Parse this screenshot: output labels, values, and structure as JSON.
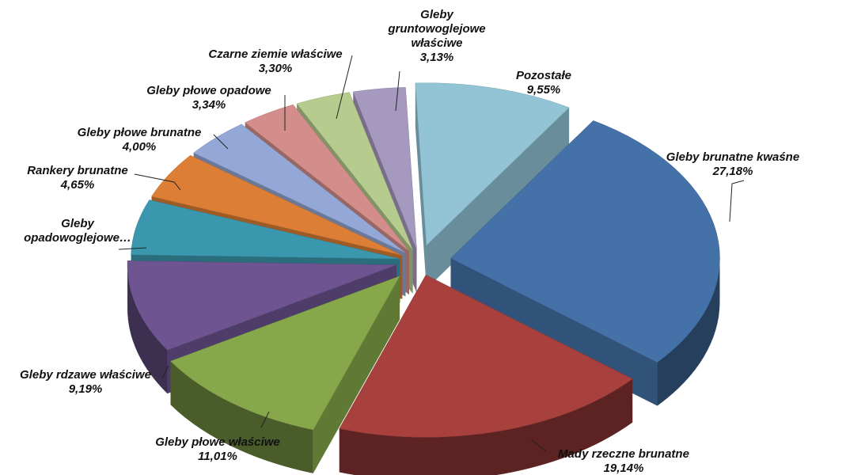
{
  "chart_data": {
    "type": "pie",
    "style": "3d-exploded",
    "title": "",
    "legend": "none",
    "slices": [
      {
        "label": [
          "Gleby brunatne kwaśne"
        ],
        "value_label": "27,18%",
        "value": 27.18,
        "color": "#4472A8"
      },
      {
        "label": [
          "Mady rzeczne brunatne"
        ],
        "value_label": "19,14%",
        "value": 19.14,
        "color": "#A8403D"
      },
      {
        "label": [
          "Gleby płowe właściwe"
        ],
        "value_label": "11,01%",
        "value": 11.01,
        "color": "#86A84A"
      },
      {
        "label": [
          "Gleby rdzawe właściwe"
        ],
        "value_label": "9,19%",
        "value": 9.19,
        "color": "#6E5592"
      },
      {
        "label": [
          "Gleby",
          "opadowoglejowe…"
        ],
        "value_label": "",
        "value": 5.51,
        "color": "#3B97AE"
      },
      {
        "label": [
          "Rankery brunatne"
        ],
        "value_label": "4,65%",
        "value": 4.65,
        "color": "#DC7E35"
      },
      {
        "label": [
          "Gleby płowe brunatne"
        ],
        "value_label": "4,00%",
        "value": 4.0,
        "color": "#93A8D6"
      },
      {
        "label": [
          "Gleby płowe opadowe"
        ],
        "value_label": "3,34%",
        "value": 3.34,
        "color": "#D38D8B"
      },
      {
        "label": [
          "Czarne ziemie właściwe"
        ],
        "value_label": "3,30%",
        "value": 3.3,
        "color": "#B5CC8E"
      },
      {
        "label": [
          "Gleby",
          "gruntowoglejowe",
          "właściwe"
        ],
        "value_label": "3,13%",
        "value": 3.13,
        "color": "#A699C0"
      },
      {
        "label": [
          "Pozostałe"
        ],
        "value_label": "9,55%",
        "value": 9.55,
        "color": "#92C4D6"
      }
    ]
  }
}
